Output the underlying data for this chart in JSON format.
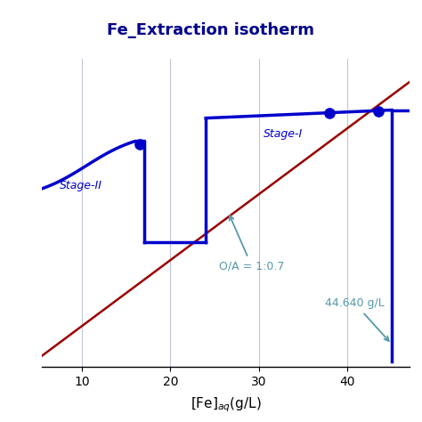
{
  "title": "Fe_Extraction isotherm",
  "title_color": "#00008B",
  "title_bg_color": "#F5DEB3",
  "xlabel_main": "[Fe]",
  "xlabel_sub": "aq",
  "xlabel_end": "(g/L)",
  "xlim": [
    5.5,
    47
  ],
  "ylim": [
    -0.02,
    1.05
  ],
  "xticks": [
    10,
    20,
    30,
    40
  ],
  "yticks": [],
  "grid_color": "#B0B8D0",
  "isotherm_color": "#0000CC",
  "oa_line_color": "#990000",
  "dot_color": "#0000CC",
  "stage_I_label": "Stage-I",
  "stage_II_label": "Stage-II",
  "oa_label": "O/A = 1:0.7",
  "annot_label": "44.640 g/L",
  "bg_plot_color": "#FFFFFF",
  "lw": 2.5
}
